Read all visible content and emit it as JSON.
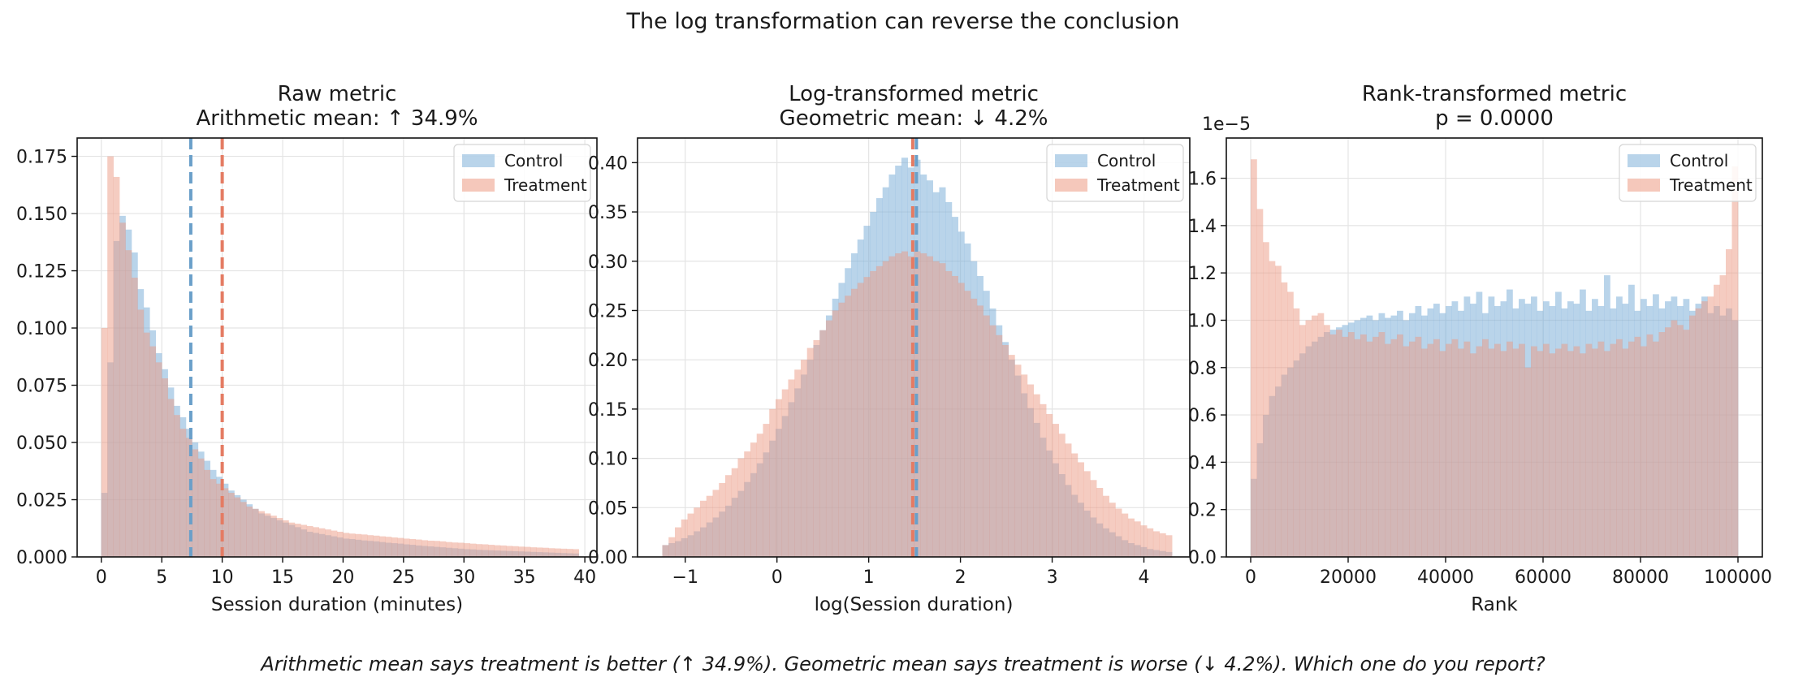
{
  "suptitle": "The log transformation can reverse the conclusion",
  "footer": "Arithmetic mean says treatment is better (↑ 34.9%).  Geometric mean says treatment is worse (↓ 4.2%).  Which one do you report?",
  "colors": {
    "control": "#7fb1d9",
    "treatment": "#ec9a84",
    "control_line": "#6a9fc9",
    "treatment_line": "#e47b63"
  },
  "chart_data": [
    {
      "type": "histogram",
      "title": "Raw metric\nArithmetic mean: ↑ 34.9%",
      "xlabel": "Session duration (minutes)",
      "ylabel": "",
      "xlim": [
        -2,
        41
      ],
      "ylim": [
        0,
        0.183
      ],
      "xticks": [
        0,
        5,
        10,
        15,
        20,
        25,
        30,
        35,
        40
      ],
      "xtick_labels": [
        "0",
        "5",
        "10",
        "15",
        "20",
        "25",
        "30",
        "35",
        "40"
      ],
      "yticks": [
        0,
        0.025,
        0.05,
        0.075,
        0.1,
        0.125,
        0.15,
        0.175
      ],
      "ytick_labels": [
        "0.000",
        "0.025",
        "0.050",
        "0.075",
        "0.100",
        "0.125",
        "0.150",
        "0.175"
      ],
      "grid": true,
      "legend": "top-right",
      "bin_start": 0,
      "bin_width": 0.5,
      "series": [
        {
          "name": "Control",
          "color_key": "control",
          "values": [
            0.028,
            0.085,
            0.138,
            0.149,
            0.143,
            0.133,
            0.117,
            0.109,
            0.099,
            0.089,
            0.082,
            0.074,
            0.066,
            0.061,
            0.056,
            0.05,
            0.046,
            0.042,
            0.038,
            0.035,
            0.032,
            0.029,
            0.027,
            0.025,
            0.023,
            0.021,
            0.019,
            0.018,
            0.017,
            0.016,
            0.015,
            0.014,
            0.013,
            0.012,
            0.011,
            0.0105,
            0.01,
            0.0095,
            0.009,
            0.0085,
            0.008,
            0.0078,
            0.0075,
            0.0072,
            0.007,
            0.0068,
            0.0065,
            0.0062,
            0.006,
            0.0058,
            0.0055,
            0.0053,
            0.005,
            0.0048,
            0.0046,
            0.0044,
            0.0042,
            0.004,
            0.0038,
            0.0036,
            0.0034,
            0.0033,
            0.0031,
            0.003,
            0.0029,
            0.0028,
            0.0027,
            0.0026,
            0.0025,
            0.0024,
            0.0023,
            0.0022,
            0.0021,
            0.002,
            0.0019,
            0.0018,
            0.0017,
            0.0016,
            0.0015
          ]
        },
        {
          "name": "Treatment",
          "color_key": "treatment",
          "values": [
            0.1,
            0.175,
            0.166,
            0.146,
            0.134,
            0.122,
            0.108,
            0.098,
            0.092,
            0.085,
            0.078,
            0.069,
            0.062,
            0.056,
            0.052,
            0.047,
            0.043,
            0.038,
            0.034,
            0.032,
            0.03,
            0.028,
            0.026,
            0.024,
            0.022,
            0.021,
            0.02,
            0.019,
            0.018,
            0.017,
            0.016,
            0.015,
            0.0145,
            0.014,
            0.0135,
            0.013,
            0.0125,
            0.012,
            0.0115,
            0.011,
            0.0105,
            0.0102,
            0.01,
            0.0098,
            0.0095,
            0.0093,
            0.009,
            0.0088,
            0.0085,
            0.0083,
            0.008,
            0.0078,
            0.0076,
            0.0073,
            0.0071,
            0.007,
            0.0068,
            0.0065,
            0.0063,
            0.0062,
            0.006,
            0.0058,
            0.0056,
            0.0055,
            0.0053,
            0.0051,
            0.005,
            0.0048,
            0.0047,
            0.0045,
            0.0044,
            0.0042,
            0.0041,
            0.004,
            0.0038,
            0.0037,
            0.0036,
            0.0035,
            0.0034
          ]
        }
      ],
      "vlines": [
        {
          "x": 7.4,
          "color_key": "control_line"
        },
        {
          "x": 10.0,
          "color_key": "treatment_line"
        }
      ],
      "sci_label": ""
    },
    {
      "type": "histogram",
      "title": "Log-transformed metric\nGeometric mean: ↓ 4.2%",
      "xlabel": "log(Session duration)",
      "ylabel": "",
      "xlim": [
        -1.52,
        4.5
      ],
      "ylim": [
        0,
        0.425
      ],
      "xticks": [
        -1,
        0,
        1,
        2,
        3,
        4
      ],
      "xtick_labels": [
        "−1",
        "0",
        "1",
        "2",
        "3",
        "4"
      ],
      "yticks": [
        0,
        0.05,
        0.1,
        0.15,
        0.2,
        0.25,
        0.3,
        0.35,
        0.4
      ],
      "ytick_labels": [
        "0.00",
        "0.05",
        "0.10",
        "0.15",
        "0.20",
        "0.25",
        "0.30",
        "0.35",
        "0.40"
      ],
      "grid": true,
      "legend": "top-right",
      "bin_start": -1.25,
      "bin_width": 0.0686,
      "series": [
        {
          "name": "Control",
          "color_key": "control",
          "values": [
            0.012,
            0.014,
            0.016,
            0.019,
            0.022,
            0.026,
            0.03,
            0.035,
            0.04,
            0.046,
            0.052,
            0.06,
            0.067,
            0.076,
            0.085,
            0.095,
            0.106,
            0.118,
            0.13,
            0.143,
            0.157,
            0.171,
            0.185,
            0.2,
            0.215,
            0.23,
            0.245,
            0.262,
            0.278,
            0.293,
            0.308,
            0.322,
            0.336,
            0.35,
            0.364,
            0.375,
            0.388,
            0.397,
            0.405,
            0.395,
            0.403,
            0.388,
            0.382,
            0.37,
            0.375,
            0.36,
            0.345,
            0.33,
            0.318,
            0.3,
            0.285,
            0.27,
            0.252,
            0.235,
            0.218,
            0.2,
            0.184,
            0.166,
            0.151,
            0.136,
            0.121,
            0.108,
            0.095,
            0.084,
            0.073,
            0.063,
            0.055,
            0.047,
            0.04,
            0.034,
            0.029,
            0.025,
            0.021,
            0.017,
            0.014,
            0.012,
            0.01,
            0.008,
            0.007,
            0.006,
            0.005
          ]
        },
        {
          "name": "Treatment",
          "color_key": "treatment",
          "values": [
            0.012,
            0.02,
            0.03,
            0.038,
            0.044,
            0.05,
            0.057,
            0.062,
            0.068,
            0.075,
            0.083,
            0.09,
            0.1,
            0.107,
            0.116,
            0.125,
            0.135,
            0.15,
            0.16,
            0.17,
            0.18,
            0.19,
            0.2,
            0.212,
            0.22,
            0.23,
            0.24,
            0.25,
            0.258,
            0.265,
            0.272,
            0.278,
            0.284,
            0.29,
            0.295,
            0.3,
            0.305,
            0.308,
            0.31,
            0.305,
            0.31,
            0.308,
            0.305,
            0.3,
            0.298,
            0.29,
            0.285,
            0.278,
            0.27,
            0.262,
            0.255,
            0.245,
            0.235,
            0.225,
            0.215,
            0.205,
            0.195,
            0.185,
            0.175,
            0.165,
            0.155,
            0.145,
            0.135,
            0.125,
            0.115,
            0.105,
            0.096,
            0.087,
            0.078,
            0.07,
            0.062,
            0.055,
            0.049,
            0.044,
            0.039,
            0.036,
            0.032,
            0.029,
            0.026,
            0.024,
            0.022
          ]
        }
      ],
      "vlines": [
        {
          "x": 1.48,
          "color_key": "treatment_line"
        },
        {
          "x": 1.52,
          "color_key": "control_line"
        }
      ],
      "sci_label": ""
    },
    {
      "type": "histogram",
      "title": "Rank-transformed metric\np = 0.0000",
      "xlabel": "Rank",
      "ylabel": "",
      "xlim": [
        -5000,
        105000
      ],
      "ylim": [
        0,
        1.77
      ],
      "xticks": [
        0,
        20000,
        40000,
        60000,
        80000,
        100000
      ],
      "xtick_labels": [
        "0",
        "20000",
        "40000",
        "60000",
        "80000",
        "100000"
      ],
      "yticks": [
        0,
        0.2,
        0.4,
        0.6,
        0.8,
        1.0,
        1.2,
        1.4,
        1.6
      ],
      "ytick_labels": [
        "0.0",
        "0.2",
        "0.4",
        "0.6",
        "0.8",
        "1.0",
        "1.2",
        "1.4",
        "1.6"
      ],
      "grid": true,
      "legend": "top-right",
      "bin_start": 0,
      "bin_width": 1250,
      "series": [
        {
          "name": "Control",
          "color_key": "control",
          "values": [
            0.33,
            0.48,
            0.6,
            0.68,
            0.72,
            0.77,
            0.8,
            0.83,
            0.86,
            0.89,
            0.91,
            0.93,
            0.95,
            0.96,
            0.97,
            0.98,
            0.99,
            1.0,
            1.01,
            1.02,
            1.0,
            1.03,
            1.01,
            1.02,
            1.04,
            1.0,
            1.03,
            1.06,
            1.02,
            1.05,
            1.07,
            1.03,
            1.06,
            1.08,
            1.04,
            1.1,
            1.07,
            1.12,
            1.03,
            1.1,
            1.06,
            1.08,
            1.13,
            1.05,
            1.09,
            1.07,
            1.1,
            1.04,
            1.08,
            1.06,
            1.12,
            1.05,
            1.08,
            1.07,
            1.13,
            1.04,
            1.09,
            1.06,
            1.19,
            1.05,
            1.1,
            1.07,
            1.15,
            1.04,
            1.09,
            1.06,
            1.11,
            1.05,
            1.08,
            1.1,
            1.06,
            1.09,
            1.04,
            1.07,
            1.1,
            1.03,
            1.06,
            1.02,
            1.05,
            1.0
          ]
        },
        {
          "name": "Treatment",
          "color_key": "treatment",
          "values": [
            1.68,
            1.47,
            1.33,
            1.25,
            1.23,
            1.16,
            1.12,
            1.05,
            0.98,
            1.0,
            1.02,
            1.03,
            0.98,
            0.94,
            0.96,
            0.93,
            0.95,
            0.92,
            0.94,
            0.91,
            0.93,
            0.95,
            0.9,
            0.92,
            0.94,
            0.89,
            0.91,
            0.93,
            0.88,
            0.9,
            0.92,
            0.87,
            0.9,
            0.92,
            0.88,
            0.91,
            0.86,
            0.89,
            0.92,
            0.88,
            0.9,
            0.87,
            0.91,
            0.88,
            0.9,
            0.8,
            0.89,
            0.87,
            0.9,
            0.86,
            0.88,
            0.9,
            0.87,
            0.89,
            0.86,
            0.9,
            0.88,
            0.91,
            0.87,
            0.9,
            0.92,
            0.88,
            0.91,
            0.93,
            0.89,
            0.94,
            0.91,
            0.95,
            0.97,
            1.0,
            0.98,
            0.96,
            1.02,
            1.05,
            1.08,
            1.1,
            1.15,
            1.19,
            1.3,
            1.65
          ]
        }
      ],
      "vlines": [],
      "sci_label": "1e−5"
    }
  ]
}
